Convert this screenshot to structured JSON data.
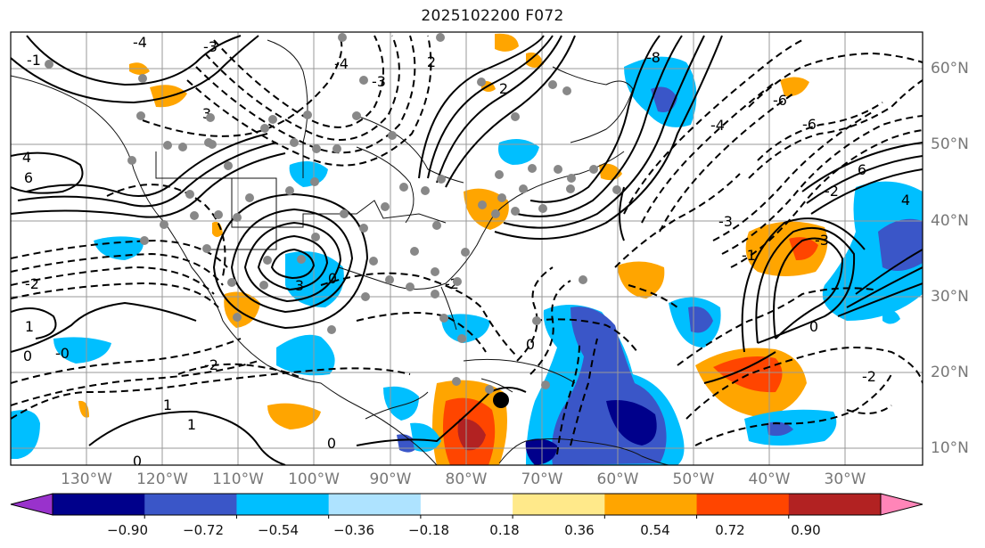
{
  "title": "2025102200 F072",
  "map": {
    "lon_labels": [
      "130°W",
      "120°W",
      "110°W",
      "100°W",
      "90°W",
      "80°W",
      "70°W",
      "60°W",
      "50°W",
      "40°W",
      "30°W"
    ],
    "lat_labels": [
      "60°N",
      "50°N",
      "40°N",
      "30°N",
      "20°N",
      "10°N"
    ],
    "contour_labels": [
      "-8",
      "-6",
      "-4",
      "-4",
      "-3",
      "-3",
      "-3",
      "-2",
      "-2",
      "-2",
      "-2",
      "-1",
      "-1",
      "0",
      "0",
      "0",
      "0",
      "0",
      "1",
      "1",
      "1",
      "2",
      "2",
      "3",
      "3",
      "4",
      "4",
      "6",
      "6",
      "-6",
      "0",
      "-0",
      "-3",
      "-4",
      "-2"
    ],
    "marker": "location-dot"
  },
  "colorbar": {
    "ticks": [
      "−0.90",
      "−0.72",
      "−0.54",
      "−0.36",
      "−0.18",
      "0.18",
      "0.36",
      "0.54",
      "0.72",
      "0.90"
    ],
    "colors": [
      "#9932cc",
      "#00008b",
      "#3a56c8",
      "#00bfff",
      "#aee3ff",
      "#ffffff",
      "#ffe98a",
      "#ffa500",
      "#ff4500",
      "#b22222",
      "#ff85b8"
    ]
  }
}
